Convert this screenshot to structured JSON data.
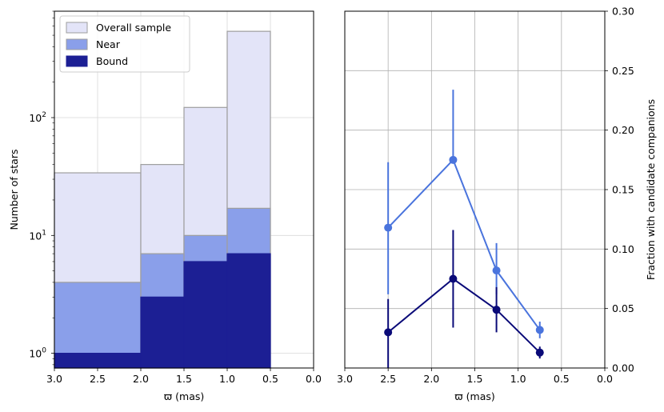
{
  "chart_data": [
    {
      "type": "bar",
      "subtype": "log-histogram",
      "xlabel": "ϖ (mas)",
      "ylabel": "Number of stars",
      "xlim": [
        3.0,
        0.0
      ],
      "ylim": [
        0.75,
        800
      ],
      "yscale": "log",
      "grid": true,
      "legend_position": "upper-left",
      "xticks": [
        "3.0",
        "2.5",
        "2.0",
        "1.5",
        "1.0",
        "0.5",
        "0.0"
      ],
      "yticks": [
        {
          "value": 1,
          "base": "10",
          "exp": "0"
        },
        {
          "value": 10,
          "base": "10",
          "exp": "1"
        },
        {
          "value": 100,
          "base": "10",
          "exp": "2"
        }
      ],
      "bins": [
        [
          3.0,
          2.0
        ],
        [
          2.0,
          1.5
        ],
        [
          1.5,
          1.0
        ],
        [
          1.0,
          0.5
        ]
      ],
      "series": [
        {
          "name": "Overall sample",
          "color": "#e3e4f8",
          "edge": "#9e9e9e",
          "values": [
            34,
            40,
            122,
            540
          ]
        },
        {
          "name": "Near",
          "color": "#8a9fea",
          "edge": "#9e9e9e",
          "values": [
            4,
            7,
            10,
            17
          ]
        },
        {
          "name": "Bound",
          "color": "#1c1f94",
          "edge": "#1c1f94",
          "values": [
            1,
            3,
            6,
            7
          ]
        }
      ]
    },
    {
      "type": "scatter",
      "subtype": "errorbar-line",
      "xlabel": "ϖ (mas)",
      "ylabel": "Fraction with candidate companions",
      "xlim": [
        3.0,
        0.0
      ],
      "ylim": [
        0.0,
        0.3
      ],
      "grid": true,
      "yaxis_side": "right",
      "xticks": [
        "3.0",
        "2.5",
        "2.0",
        "1.5",
        "1.0",
        "0.5",
        "0.0"
      ],
      "yticks": [
        "0.00",
        "0.05",
        "0.10",
        "0.15",
        "0.20",
        "0.25",
        "0.30"
      ],
      "series": [
        {
          "color": "#4a74dd",
          "x": [
            2.5,
            1.75,
            1.25,
            0.75
          ],
          "y": [
            0.118,
            0.175,
            0.082,
            0.032
          ],
          "yerr_low": [
            0.062,
            0.175,
            0.062,
            0.025
          ],
          "yerr_high": [
            0.173,
            0.234,
            0.105,
            0.039
          ]
        },
        {
          "color": "#0a0a78",
          "x": [
            2.5,
            1.75,
            1.25,
            0.75
          ],
          "y": [
            0.03,
            0.075,
            0.049,
            0.013
          ],
          "yerr_low": [
            0.0,
            0.034,
            0.03,
            0.008
          ],
          "yerr_high": [
            0.058,
            0.116,
            0.068,
            0.018
          ]
        }
      ]
    }
  ]
}
